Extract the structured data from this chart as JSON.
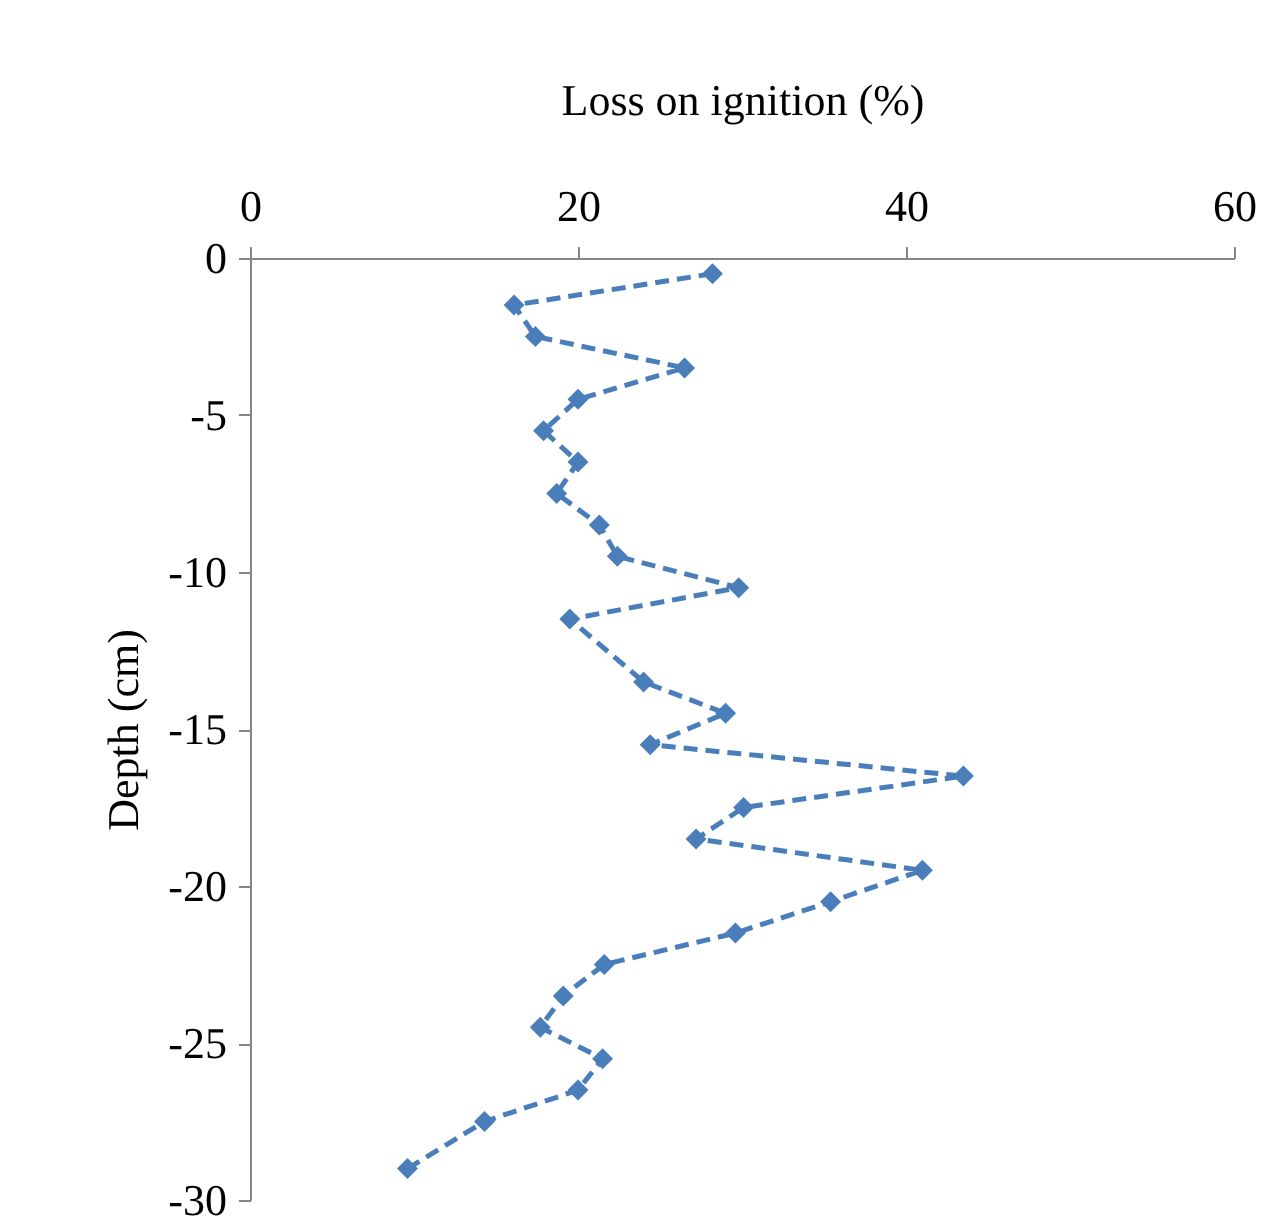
{
  "chart_data": {
    "type": "line",
    "xlabel": "Loss on ignition (%)",
    "ylabel": "Depth (cm)",
    "xlim": [
      0,
      60
    ],
    "xticks": [
      0,
      20,
      40,
      60
    ],
    "ylim": [
      -30,
      0
    ],
    "yticks": [
      0,
      -5,
      -10,
      -15,
      -20,
      -25,
      -30
    ],
    "grid": false,
    "legend": false,
    "marker": "diamond",
    "line_style": "dashed",
    "series": [
      {
        "color": "#4a7ebb",
        "x": [
          28.2,
          16.1,
          17.4,
          26.5,
          20,
          17.9,
          20,
          18.7,
          21.3,
          22.4,
          29.8,
          19.5,
          24,
          29,
          24.4,
          43.5,
          30.1,
          27.2,
          41,
          35.4,
          29.6,
          21.6,
          19.1,
          17.7,
          21.5,
          20,
          14.3,
          9.6
        ],
        "values": [
          -0.5,
          -1.5,
          -2.5,
          -3.5,
          -4.5,
          -5.5,
          -6.5,
          -7.5,
          -8.5,
          -9.5,
          -10.5,
          -11.5,
          -13.5,
          -14.5,
          -15.5,
          -16.5,
          -17.5,
          -18.5,
          -19.5,
          -20.5,
          -21.5,
          -22.5,
          -23.5,
          -24.5,
          -25.5,
          -26.5,
          -27.5,
          -29
        ]
      }
    ]
  }
}
